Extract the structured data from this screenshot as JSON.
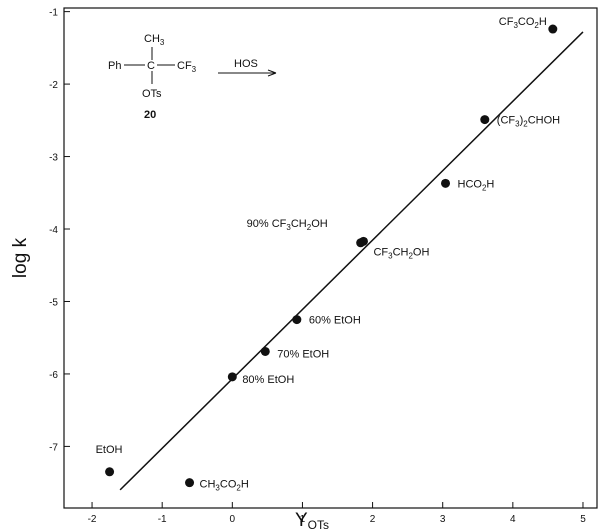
{
  "chart_data": {
    "type": "scatter",
    "xlabel": "Y",
    "xlabel_sub": "OTs",
    "ylabel": "log k",
    "xlim": [
      -2.4,
      5.2
    ],
    "ylim": [
      -7.85,
      -0.95
    ],
    "xticks": [
      -2,
      -1,
      0,
      1,
      2,
      3,
      4,
      5
    ],
    "xtick_labels": [
      "-2",
      "-1",
      "0",
      "1",
      "2",
      "3",
      "4",
      "5"
    ],
    "yticks": [
      -1,
      -2,
      -3,
      -4,
      -5,
      -6,
      -7
    ],
    "ytick_labels": [
      "-1",
      "-2",
      "-3",
      "-4",
      "-5",
      "-6",
      "-7"
    ],
    "grid": false,
    "points": [
      {
        "label": "EtOH",
        "x": -1.75,
        "y": -7.35
      },
      {
        "label": "CH3CO2H",
        "x": -0.61,
        "y": -7.5
      },
      {
        "label": "80% EtOH",
        "x": 0.0,
        "y": -6.04
      },
      {
        "label": "70% EtOH",
        "x": 0.47,
        "y": -5.69
      },
      {
        "label": "60% EtOH",
        "x": 0.92,
        "y": -5.25
      },
      {
        "label": "90% CF3CH2OH",
        "x": 1.83,
        "y": -4.19
      },
      {
        "label": "CF3CH2OH",
        "x": 1.87,
        "y": -4.17
      },
      {
        "label": "HCO2H",
        "x": 3.04,
        "y": -3.37
      },
      {
        "label": "(CF3)2CHOH",
        "x": 3.6,
        "y": -2.49
      },
      {
        "label": "CF3CO2H",
        "x": 4.57,
        "y": -1.24
      }
    ],
    "fit_line": {
      "x": [
        -1.6,
        5.0
      ],
      "y": [
        -7.6,
        -1.28
      ]
    }
  },
  "scheme": {
    "methyl": "CH",
    "methyl_sub": "3",
    "phenyl": "Ph",
    "carbon": "C",
    "cf3": "CF",
    "cf3_sub": "3",
    "leaving_group": "OTs",
    "compound_number": "20",
    "reagent": "HOS"
  }
}
